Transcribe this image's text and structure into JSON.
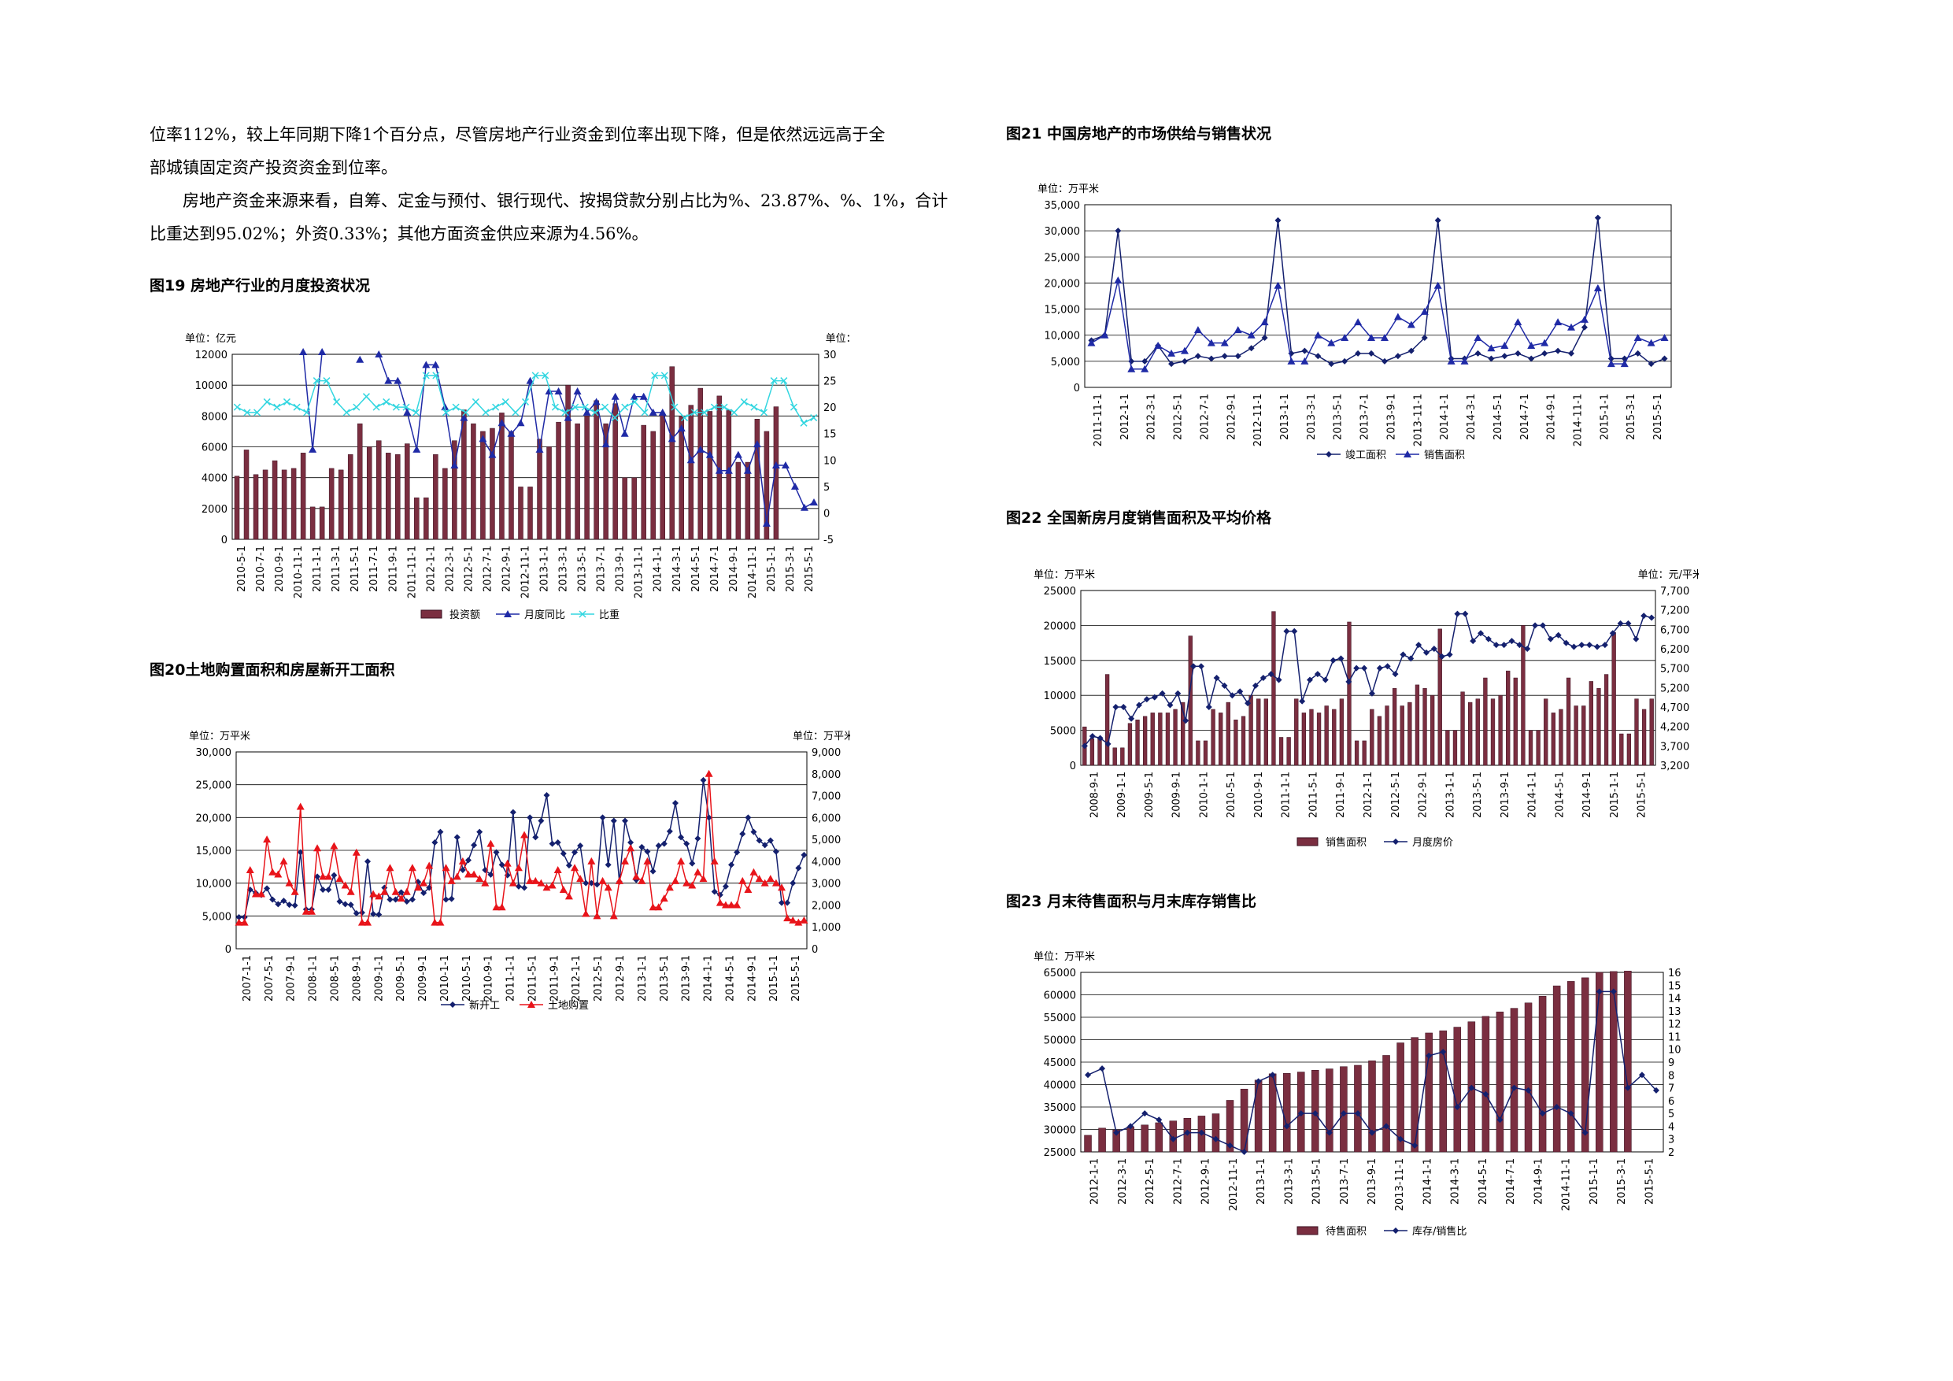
{
  "text": {
    "line1": "位率112%，较上年同期下降1个百分点，尽管房地产行业资金到位率出现下降，但是依然远远高于全",
    "line2": "部城镇固定资产投资资金到位率。",
    "para2": "房地产资金来源来看，自筹、定金与预付、银行现代、按揭贷款分别占比为%、23.87%、%、1%，合计比重达到95.02%；外资0.33%；其他方面资金供应来源为4.56%。"
  },
  "colors": {
    "bar": "#7a2e40",
    "blue": "#1f2aa6",
    "navy": "#14206e",
    "cyan": "#33d6e0",
    "red": "#e8141a"
  },
  "fig19": {
    "title": "图19 房地产行业的月度投资状况",
    "unit_left": "单位：亿元",
    "unit_right": "单位：%",
    "chart_data": {
      "type": "bar",
      "xlabels": [
        "2010-5-1",
        "2010-7-1",
        "2010-9-1",
        "2010-11-1",
        "2011-1-1",
        "2011-3-1",
        "2011-5-1",
        "2011-7-1",
        "2011-9-1",
        "2011-11-1",
        "2012-1-1",
        "2012-3-1",
        "2012-5-1",
        "2012-7-1",
        "2012-9-1",
        "2012-11-1",
        "2013-1-1",
        "2013-3-1",
        "2013-5-1",
        "2013-7-1",
        "2013-9-1",
        "2013-11-1",
        "2014-1-1",
        "2014-3-1",
        "2014-5-1",
        "2014-7-1",
        "2014-9-1",
        "2014-11-1",
        "2015-1-1",
        "2015-3-1",
        "2015-5-1"
      ],
      "y_left": {
        "min": 0,
        "max": 12000,
        "ticks": [
          "0",
          "2000",
          "4000",
          "6000",
          "8000",
          "10000",
          "12000"
        ]
      },
      "y_right": {
        "min": -5,
        "max": 30,
        "ticks": [
          "-5",
          "0",
          "5",
          "10",
          "15",
          "20",
          "25",
          "30"
        ]
      },
      "series": [
        {
          "name": "投资额",
          "kind": "bar",
          "axis": "left",
          "values": [
            4100,
            5800,
            4200,
            4500,
            5100,
            4500,
            4600,
            5600,
            2100,
            2100,
            4600,
            4500,
            5500,
            7500,
            6000,
            6400,
            5600,
            5500,
            6200,
            2700,
            2700,
            5500,
            4600,
            6400,
            8400,
            7500,
            7000,
            7200,
            8200,
            7000,
            3400,
            3400,
            6500,
            6000,
            7600,
            10000,
            7500,
            8000,
            9000,
            7500,
            8800,
            4000,
            4000,
            7400,
            7000,
            8200,
            11200,
            8000,
            8700,
            9800,
            8300,
            9300,
            8400,
            5000,
            5000,
            7800,
            7000,
            8600
          ]
        },
        {
          "name": "月度同比",
          "kind": "line",
          "axis": "right",
          "values": [
            null,
            null,
            null,
            null,
            null,
            null,
            null,
            35,
            12,
            35,
            null,
            null,
            null,
            29,
            null,
            30,
            25,
            25,
            19,
            12,
            28,
            28,
            20,
            9,
            18,
            null,
            14,
            11,
            17,
            15,
            17,
            25,
            12,
            23,
            23,
            18,
            23,
            19,
            21,
            13,
            22,
            15,
            22,
            22,
            19,
            19,
            14,
            16,
            10,
            12,
            11,
            8,
            8,
            11,
            8,
            13,
            -2,
            9,
            9,
            5,
            1,
            2
          ]
        },
        {
          "name": "比重",
          "kind": "line",
          "axis": "right",
          "values": [
            20,
            19,
            19,
            21,
            20,
            21,
            20,
            19,
            25,
            25,
            21,
            19,
            20,
            22,
            20,
            21,
            20,
            20,
            19,
            26,
            26,
            19,
            20,
            19,
            21,
            19,
            20,
            21,
            19,
            21,
            26,
            26,
            20,
            19,
            20,
            20,
            19,
            20,
            18,
            20,
            21,
            19,
            26,
            26,
            20,
            18,
            19,
            19,
            20,
            20,
            19,
            21,
            20,
            19,
            25,
            25,
            20,
            17,
            18
          ]
        }
      ]
    }
  },
  "fig20": {
    "title": "图20土地购置面积和房屋新开工面积",
    "unit_left": "单位：万平米",
    "unit_right": "单位：万平米",
    "chart_data": {
      "type": "line",
      "xlabels": [
        "2007-1-1",
        "2007-5-1",
        "2007-9-1",
        "2008-1-1",
        "2008-5-1",
        "2008-9-1",
        "2009-1-1",
        "2009-5-1",
        "2009-9-1",
        "2010-1-1",
        "2010-5-1",
        "2010-9-1",
        "2011-1-1",
        "2011-5-1",
        "2011-9-1",
        "2012-1-1",
        "2012-5-1",
        "2012-9-1",
        "2013-1-1",
        "2013-5-1",
        "2013-9-1",
        "2014-1-1",
        "2014-5-1",
        "2014-9-1",
        "2015-1-1",
        "2015-5-1"
      ],
      "y_left": {
        "min": 0,
        "max": 30000,
        "ticks": [
          "0",
          "5,000",
          "10,000",
          "15,000",
          "20,000",
          "25,000",
          "30,000"
        ]
      },
      "y_right": {
        "min": 0,
        "max": 9000,
        "ticks": [
          "0",
          "1,000",
          "2,000",
          "3,000",
          "4,000",
          "5,000",
          "6,000",
          "7,000",
          "8,000",
          "9,000"
        ]
      },
      "series": [
        {
          "name": "新开工",
          "axis": "left",
          "values": [
            4800,
            4800,
            9000,
            8500,
            8200,
            9200,
            7500,
            6800,
            7300,
            6700,
            6600,
            14700,
            6000,
            6000,
            11000,
            9000,
            9000,
            11200,
            7200,
            6800,
            6700,
            5400,
            5500,
            13300,
            5300,
            5200,
            9300,
            7500,
            7500,
            8600,
            7200,
            7500,
            10200,
            8500,
            9300,
            16200,
            17800,
            7500,
            7600,
            17000,
            12000,
            13500,
            15800,
            17800,
            12000,
            11300,
            14700,
            12800,
            11200,
            20800,
            9500,
            9300,
            20000,
            17000,
            19500,
            23400,
            16000,
            16200,
            14500,
            12700,
            14700,
            15700,
            10000,
            10000,
            9800,
            20000,
            12800,
            19500,
            10200,
            19500,
            16200,
            10500,
            15500,
            14800,
            11800,
            15700,
            16000,
            17900,
            22200,
            17000,
            16000,
            13000,
            16800,
            25700,
            20000,
            8700,
            8200,
            9500,
            12800,
            14700,
            17500,
            20000,
            17800,
            16500,
            15800,
            16500,
            14800,
            7000,
            7000,
            10000,
            12300,
            14300
          ]
        },
        {
          "name": "土地购置",
          "axis": "right",
          "values": [
            1200,
            1200,
            3600,
            2500,
            2500,
            5000,
            3500,
            3400,
            4000,
            3000,
            2600,
            6500,
            1700,
            1700,
            4600,
            3300,
            3300,
            4700,
            3200,
            2900,
            2600,
            4400,
            1200,
            1200,
            2500,
            2400,
            2600,
            3700,
            2600,
            2300,
            2600,
            3700,
            2800,
            3000,
            3800,
            1200,
            1200,
            3700,
            3100,
            3300,
            4000,
            3400,
            3400,
            3200,
            3000,
            4800,
            1900,
            1900,
            3900,
            3000,
            3700,
            5200,
            3100,
            3100,
            3000,
            2800,
            2900,
            3600,
            2700,
            2400,
            3700,
            3200,
            1600,
            4000,
            1500,
            3100,
            2800,
            1500,
            3100,
            4000,
            4600,
            3300,
            3100,
            4000,
            1900,
            1900,
            2300,
            2800,
            3100,
            4000,
            3000,
            2900,
            3500,
            3200,
            8000,
            4000,
            2100,
            2000,
            2000,
            2000,
            3100,
            2700,
            3500,
            3200,
            3000,
            3200,
            3000,
            2800,
            1400,
            1300,
            1200,
            1300
          ]
        }
      ]
    }
  },
  "fig21": {
    "title": "图21 中国房地产的市场供给与销售状况",
    "unit_left": "单位：万平米",
    "chart_data": {
      "type": "line",
      "xlabels": [
        "2011-11-1",
        "2012-1-1",
        "2012-3-1",
        "2012-5-1",
        "2012-7-1",
        "2012-9-1",
        "2012-11-1",
        "2013-1-1",
        "2013-3-1",
        "2013-5-1",
        "2013-7-1",
        "2013-9-1",
        "2013-11-1",
        "2014-1-1",
        "2014-3-1",
        "2014-5-1",
        "2014-7-1",
        "2014-9-1",
        "2014-11-1",
        "2015-1-1",
        "2015-3-1",
        "2015-5-1"
      ],
      "y_left": {
        "min": 0,
        "max": 35000,
        "ticks": [
          "0",
          "5,000",
          "10,000",
          "15,000",
          "20,000",
          "25,000",
          "30,000",
          "35,000"
        ]
      },
      "series": [
        {
          "name": "竣工面积",
          "values": [
            9000,
            10000,
            30000,
            5000,
            5000,
            8000,
            4500,
            5000,
            6000,
            5500,
            6000,
            6000,
            7500,
            9500,
            32000,
            6500,
            7000,
            6000,
            4500,
            5000,
            6500,
            6500,
            5000,
            6000,
            7000,
            9500,
            32000,
            5500,
            5500,
            6500,
            5500,
            6000,
            6500,
            5500,
            6500,
            7000,
            6500,
            11500,
            32500,
            5500,
            5500,
            6500,
            4500,
            5500
          ]
        },
        {
          "name": "销售面积",
          "values": [
            8500,
            10000,
            20500,
            3500,
            3500,
            8000,
            6500,
            7000,
            11000,
            8500,
            8500,
            11000,
            10000,
            12500,
            19500,
            5000,
            5000,
            10000,
            8500,
            9500,
            12500,
            9500,
            9500,
            13500,
            12000,
            14500,
            19500,
            5000,
            5000,
            9500,
            7500,
            8000,
            12500,
            8000,
            8500,
            12500,
            11500,
            13000,
            19000,
            4500,
            4500,
            9500,
            8500,
            9500
          ]
        }
      ]
    }
  },
  "fig22": {
    "title": "图22 全国新房月度销售面积及平均价格",
    "unit_left": "单位：万平米",
    "unit_right": "单位：元/平米",
    "chart_data": {
      "type": "bar",
      "xlabels": [
        "2008-9-1",
        "2009-1-1",
        "2009-5-1",
        "2009-9-1",
        "2010-1-1",
        "2010-5-1",
        "2010-9-1",
        "2011-1-1",
        "2011-5-1",
        "2011-9-1",
        "2012-1-1",
        "2012-5-1",
        "2012-9-1",
        "2013-1-1",
        "2013-5-1",
        "2013-9-1",
        "2014-1-1",
        "2014-5-1",
        "2014-9-1",
        "2015-1-1",
        "2015-5-1"
      ],
      "y_left": {
        "min": 0,
        "max": 25000,
        "ticks": [
          "0",
          "5000",
          "10000",
          "15000",
          "20000",
          "25000"
        ]
      },
      "y_right": {
        "min": 3200,
        "max": 7700,
        "ticks": [
          "3,200",
          "3,700",
          "4,200",
          "4,700",
          "5,200",
          "5,700",
          "6,200",
          "6,700",
          "7,200",
          "7,700"
        ]
      },
      "series": [
        {
          "name": "销售面积",
          "kind": "bar",
          "axis": "left",
          "values": [
            5500,
            3800,
            3800,
            13000,
            2500,
            2500,
            6000,
            6500,
            7000,
            7500,
            7500,
            7500,
            8000,
            9000,
            18500,
            3500,
            3500,
            8000,
            7500,
            9000,
            6500,
            7000,
            10000,
            9500,
            9500,
            22000,
            4000,
            4000,
            9500,
            7500,
            8000,
            7500,
            8500,
            8000,
            9500,
            20500,
            3500,
            3500,
            8000,
            7000,
            8500,
            11000,
            8500,
            9000,
            11500,
            11000,
            10000,
            19500,
            5000,
            5000,
            10500,
            9000,
            9500,
            12500,
            9500,
            10000,
            13500,
            12500,
            20000,
            5000,
            5000,
            9500,
            7500,
            8000,
            12500,
            8500,
            8500,
            12000,
            11000,
            13000,
            19000,
            4500,
            4500,
            9500,
            8000,
            9500
          ]
        },
        {
          "name": "月度房价",
          "kind": "line",
          "axis": "right",
          "values": [
            3700,
            3950,
            3900,
            3750,
            4700,
            4700,
            4400,
            4750,
            4900,
            4950,
            5050,
            4750,
            5050,
            4350,
            5750,
            5750,
            4700,
            5450,
            5250,
            5000,
            5100,
            4800,
            5250,
            5450,
            5550,
            5400,
            6650,
            6650,
            4850,
            5400,
            5550,
            5400,
            5900,
            5950,
            5350,
            5700,
            5700,
            5050,
            5700,
            5750,
            5550,
            6050,
            5950,
            6300,
            6100,
            6200,
            6000,
            6050,
            7100,
            7100,
            6400,
            6600,
            6450,
            6300,
            6300,
            6400,
            6300,
            6200,
            6800,
            6800,
            6450,
            6550,
            6350,
            6250,
            6300,
            6300,
            6250,
            6300,
            6600,
            6850,
            6850,
            6450,
            7050,
            7000
          ]
        }
      ]
    }
  },
  "fig23": {
    "title": "图23 月末待售面积与月末库存销售比",
    "unit_left": "单位：万平米",
    "chart_data": {
      "type": "bar",
      "xlabels": [
        "2012-1-1",
        "2012-3-1",
        "2012-5-1",
        "2012-7-1",
        "2012-9-1",
        "2012-11-1",
        "2013-1-1",
        "2013-3-1",
        "2013-5-1",
        "2013-7-1",
        "2013-9-1",
        "2013-11-1",
        "2014-1-1",
        "2014-3-1",
        "2014-5-1",
        "2014-7-1",
        "2014-9-1",
        "2014-11-1",
        "2015-1-1",
        "2015-3-1",
        "2015-5-1"
      ],
      "y_left": {
        "min": 25000,
        "max": 65000,
        "ticks": [
          "25000",
          "30000",
          "35000",
          "40000",
          "45000",
          "50000",
          "55000",
          "60000",
          "65000"
        ]
      },
      "y_right": {
        "min": 2,
        "max": 16,
        "ticks": [
          "2",
          "3",
          "4",
          "5",
          "6",
          "7",
          "8",
          "9",
          "10",
          "11",
          "12",
          "13",
          "14",
          "15",
          "16"
        ]
      },
      "series": [
        {
          "name": "待售面积",
          "kind": "bar",
          "axis": "left",
          "values": [
            28700,
            30300,
            29900,
            30600,
            31000,
            31500,
            31900,
            32500,
            33000,
            33500,
            36500,
            39000,
            41000,
            42400,
            42500,
            42800,
            43200,
            43500,
            44000,
            44300,
            45300,
            46500,
            49300,
            50500,
            51500,
            52000,
            52800,
            54000,
            55200,
            56200,
            57000,
            58200,
            59700,
            62000,
            63000,
            63800,
            65000,
            65200,
            65300
          ]
        },
        {
          "name": "库存/销售比",
          "kind": "line",
          "axis": "right",
          "values": [
            8,
            8.5,
            3.5,
            4,
            5,
            4.5,
            3,
            3.5,
            3.5,
            3,
            2.5,
            2,
            7.5,
            8,
            4,
            5,
            5,
            3.5,
            5,
            5,
            3.5,
            4,
            3,
            2.5,
            9.5,
            9.8,
            5.5,
            7,
            6.5,
            4.5,
            7,
            6.8,
            5,
            5.5,
            5,
            3.5,
            14.5,
            14.5,
            7,
            8,
            6.8
          ]
        }
      ]
    }
  }
}
